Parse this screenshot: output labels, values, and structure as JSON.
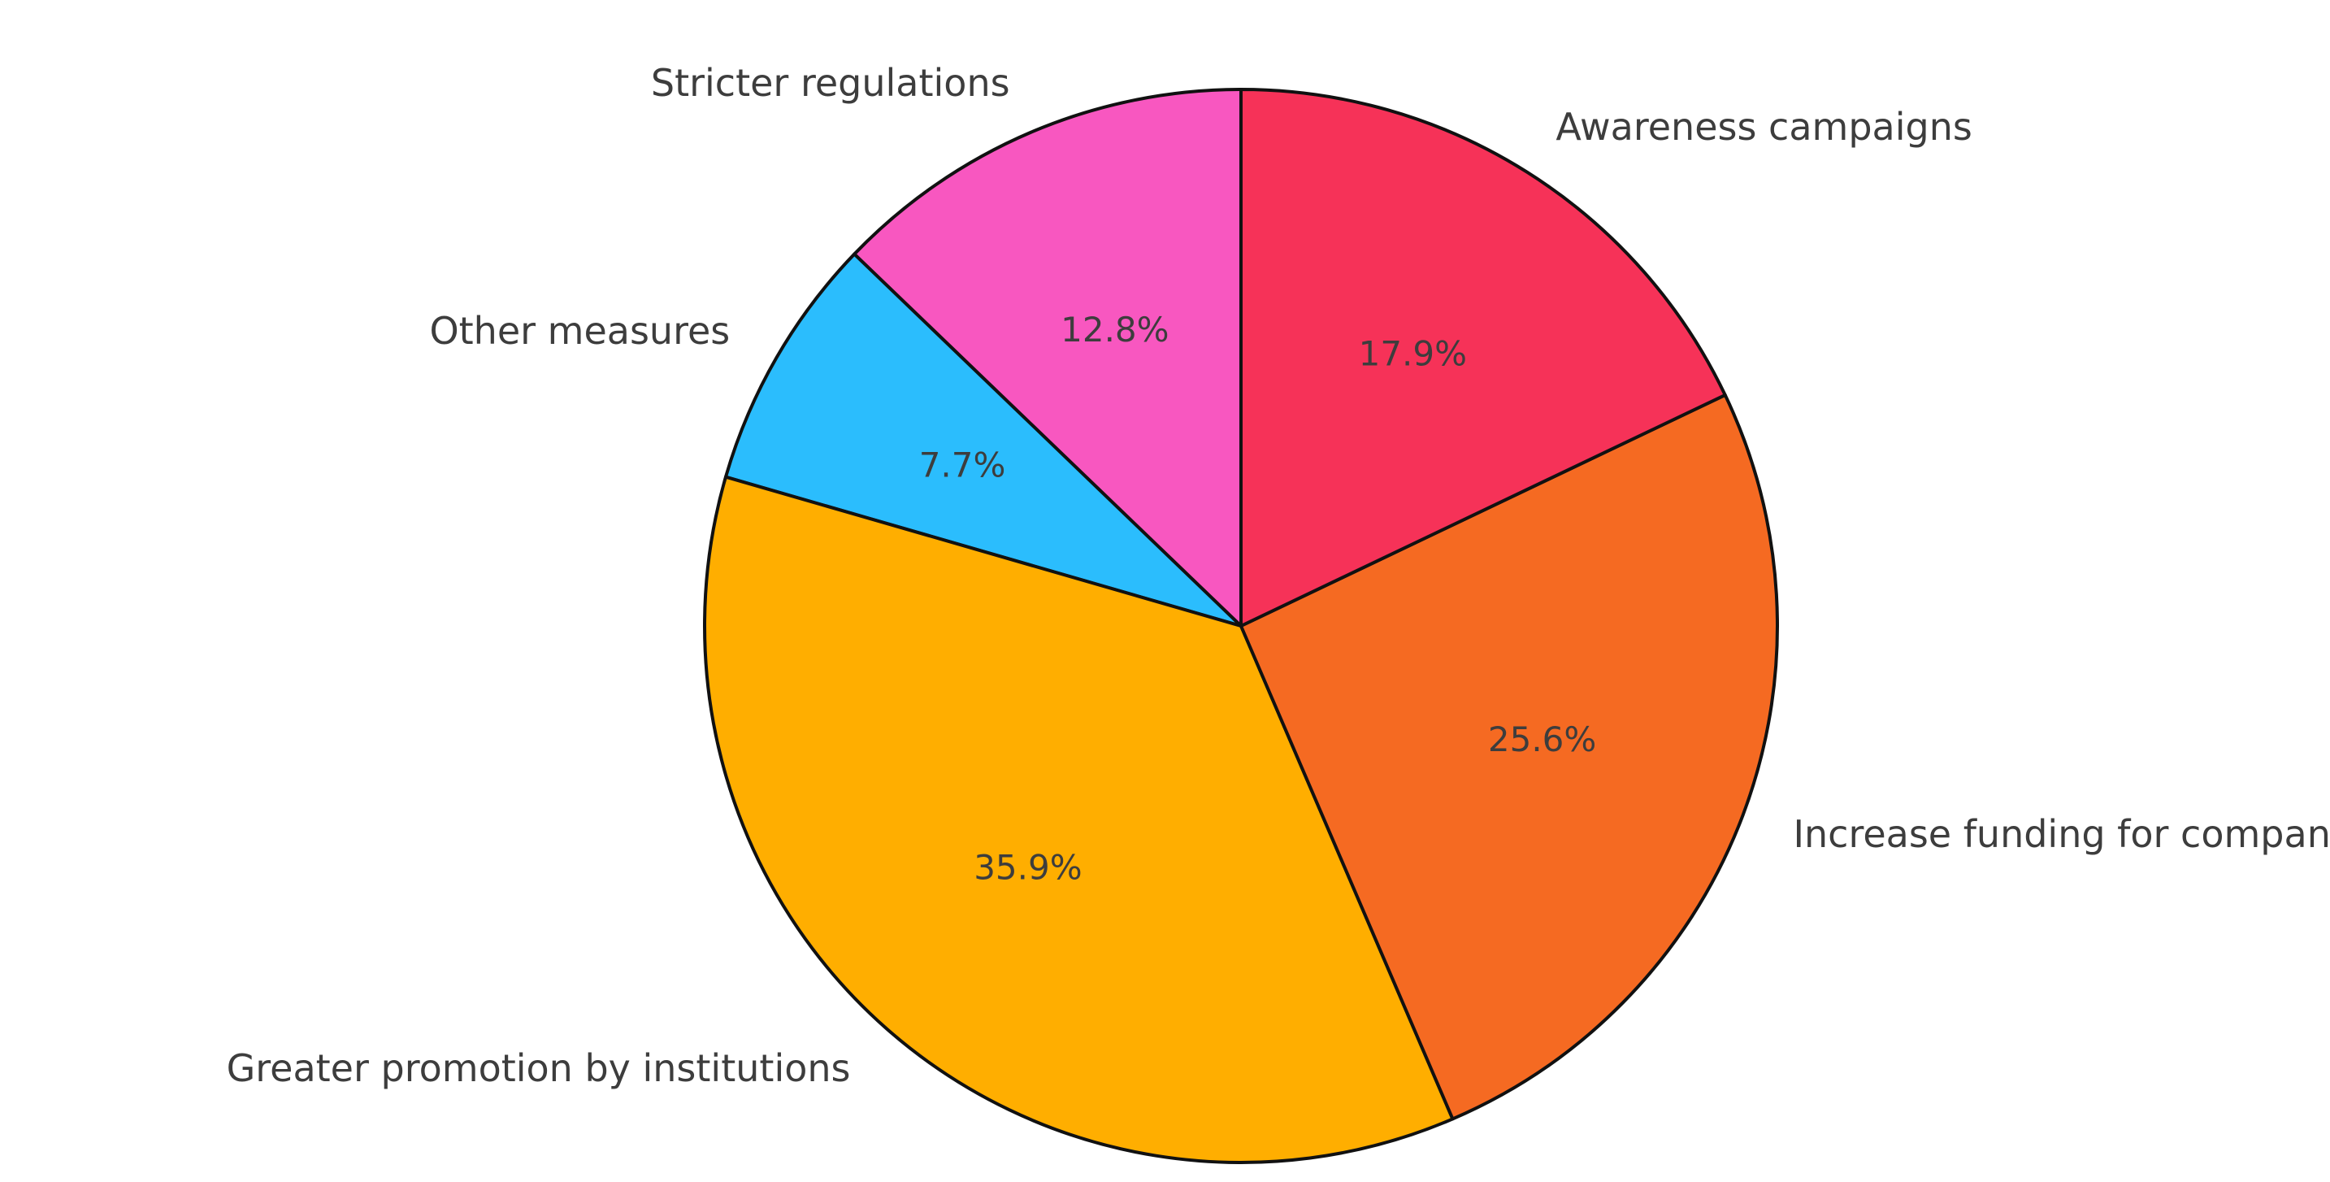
{
  "chart_data": {
    "type": "pie",
    "title": "",
    "start_angle_deg": 90,
    "direction": "counterclockwise",
    "legend": "none",
    "slices": [
      {
        "label": "Stricter regulations",
        "value": 12.8,
        "pct_label": "12.8%",
        "color": "#F857C0"
      },
      {
        "label": "Other measures",
        "value": 7.7,
        "pct_label": "7.7%",
        "color": "#2BBDFD"
      },
      {
        "label": "Greater promotion by institutions",
        "value": 35.9,
        "pct_label": "35.9%",
        "color": "#FFAE00"
      },
      {
        "label": "Increase funding for companies",
        "value": 25.6,
        "pct_label": "25.6%",
        "color": "#F56A22"
      },
      {
        "label": "Awareness campaigns",
        "value": 17.9,
        "pct_label": "17.9%",
        "color": "#F63258"
      }
    ]
  }
}
